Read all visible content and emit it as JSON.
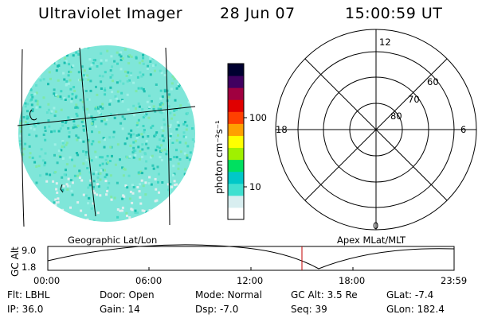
{
  "header": {
    "instrument": "Ultraviolet Imager",
    "date": "28 Jun 07",
    "time": "15:00:59 UT"
  },
  "image_panel": {
    "label": "Geographic Lat/Lon"
  },
  "colorbar": {
    "unit_label": "photon cm⁻²s⁻¹",
    "tick_labels": [
      "100",
      "10"
    ],
    "scale": "log",
    "colors": [
      "#ffffff",
      "#d8eef0",
      "#40e0d0",
      "#00c8c8",
      "#00e060",
      "#a0f000",
      "#ffff00",
      "#ffa000",
      "#ff4000",
      "#e00000",
      "#a00040",
      "#400060",
      "#000030"
    ]
  },
  "polar_plot": {
    "label": "Apex MLat/MLT",
    "mlt_labels": [
      "12",
      "18",
      "6",
      "0"
    ],
    "mlat_labels": [
      "60",
      "70",
      "80"
    ]
  },
  "orbit_plot": {
    "ylabel": "GC Alt",
    "yticks": [
      "9.0",
      "1.8"
    ],
    "xticks": [
      "00:00",
      "06:00",
      "12:00",
      "18:00",
      "23:59"
    ],
    "current_time_marker": "15:00:59",
    "marker_color": "#c00000"
  },
  "footer": {
    "filter": "Flt: LBHL",
    "ip": "IP: 36.0",
    "door": "Door: Open",
    "gain": "Gain: 14",
    "mode": "Mode: Normal",
    "dsp": "Dsp:    -7.0",
    "gc_alt": "GC Alt: 3.5 Re",
    "seq": "Seq: 39",
    "glat": "GLat:    -7.4",
    "glon": "GLon: 182.4"
  }
}
